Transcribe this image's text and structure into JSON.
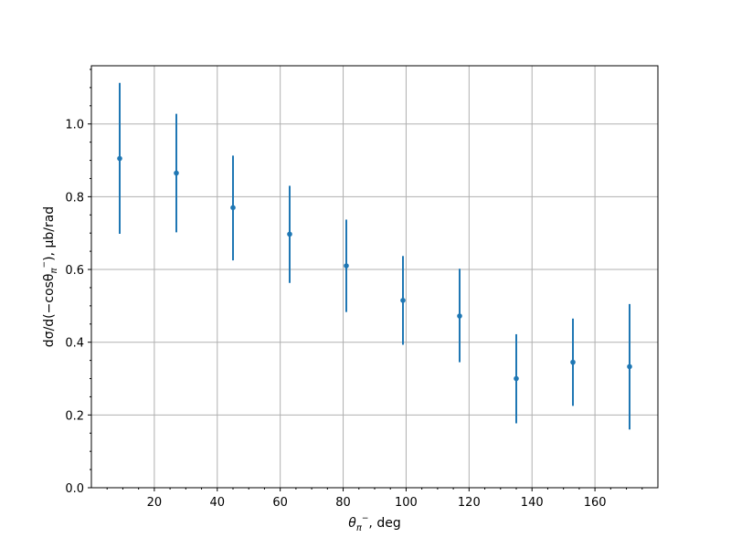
{
  "chart_data": {
    "type": "scatter",
    "title": "",
    "xlabel_base": "θ",
    "xlabel_sub": "π",
    "xlabel_sup": "−",
    "xlabel_rest": ", deg",
    "ylabel_prefix": "dσ/d(−cosθ",
    "ylabel_sub": "π",
    "ylabel_sup": "−",
    "ylabel_suffix": "), μb/rad",
    "xlim": [
      0,
      180
    ],
    "ylim": [
      0.0,
      1.16
    ],
    "x_ticks": [
      20,
      40,
      60,
      80,
      100,
      120,
      140,
      160
    ],
    "y_ticks": [
      0.0,
      0.2,
      0.4,
      0.6,
      0.8,
      1.0
    ],
    "x_tick_labels": [
      "20",
      "40",
      "60",
      "80",
      "100",
      "120",
      "140",
      "160"
    ],
    "y_tick_labels": [
      "0.0",
      "0.2",
      "0.4",
      "0.6",
      "0.8",
      "1.0"
    ],
    "grid": true,
    "series_color": "#1f77b4",
    "points": [
      {
        "x": 9,
        "y": 0.905,
        "low": 0.698,
        "high": 1.113
      },
      {
        "x": 27,
        "y": 0.865,
        "low": 0.702,
        "high": 1.028
      },
      {
        "x": 45,
        "y": 0.77,
        "low": 0.625,
        "high": 0.913
      },
      {
        "x": 63,
        "y": 0.697,
        "low": 0.563,
        "high": 0.83
      },
      {
        "x": 81,
        "y": 0.61,
        "low": 0.483,
        "high": 0.737
      },
      {
        "x": 99,
        "y": 0.515,
        "low": 0.393,
        "high": 0.637
      },
      {
        "x": 117,
        "y": 0.472,
        "low": 0.345,
        "high": 0.602
      },
      {
        "x": 135,
        "y": 0.3,
        "low": 0.177,
        "high": 0.422
      },
      {
        "x": 153,
        "y": 0.345,
        "low": 0.225,
        "high": 0.465
      },
      {
        "x": 171,
        "y": 0.333,
        "low": 0.16,
        "high": 0.505
      }
    ]
  }
}
